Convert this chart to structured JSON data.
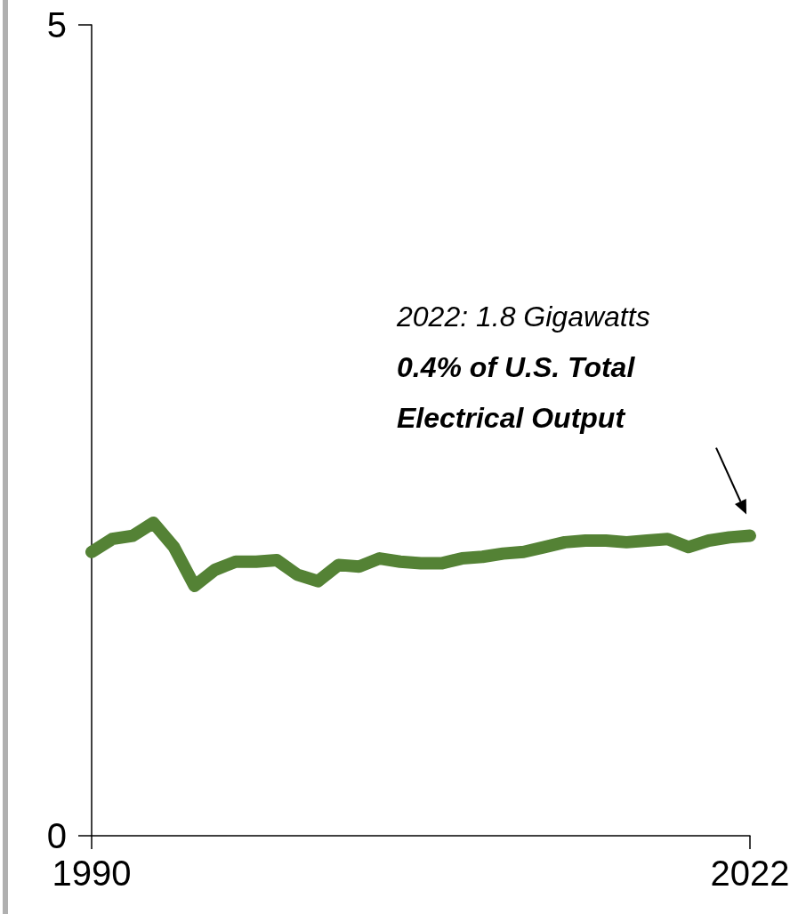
{
  "chart_data": {
    "type": "line",
    "x": [
      1990,
      1991,
      1992,
      1993,
      1994,
      1995,
      1996,
      1997,
      1998,
      1999,
      2000,
      2001,
      2002,
      2003,
      2004,
      2005,
      2006,
      2007,
      2008,
      2009,
      2010,
      2011,
      2012,
      2013,
      2014,
      2015,
      2016,
      2017,
      2018,
      2019,
      2020,
      2021,
      2022
    ],
    "series": [
      {
        "color": "#548235",
        "values": [
          1.75,
          1.83,
          1.85,
          1.93,
          1.78,
          1.54,
          1.64,
          1.69,
          1.69,
          1.7,
          1.61,
          1.57,
          1.67,
          1.66,
          1.71,
          1.69,
          1.68,
          1.68,
          1.71,
          1.72,
          1.74,
          1.75,
          1.78,
          1.81,
          1.82,
          1.82,
          1.81,
          1.82,
          1.83,
          1.78,
          1.82,
          1.84,
          1.85
        ]
      }
    ],
    "xlim": [
      1990,
      2022
    ],
    "xticks": [
      1990,
      2022
    ],
    "ylim": [
      0,
      5
    ],
    "yticks": [
      0,
      5
    ],
    "annotations": [
      "2022: 1.8 Gigawatts",
      "0.4% of U.S. Total Electrical Output"
    ],
    "grid": false,
    "line_style": "solid"
  }
}
